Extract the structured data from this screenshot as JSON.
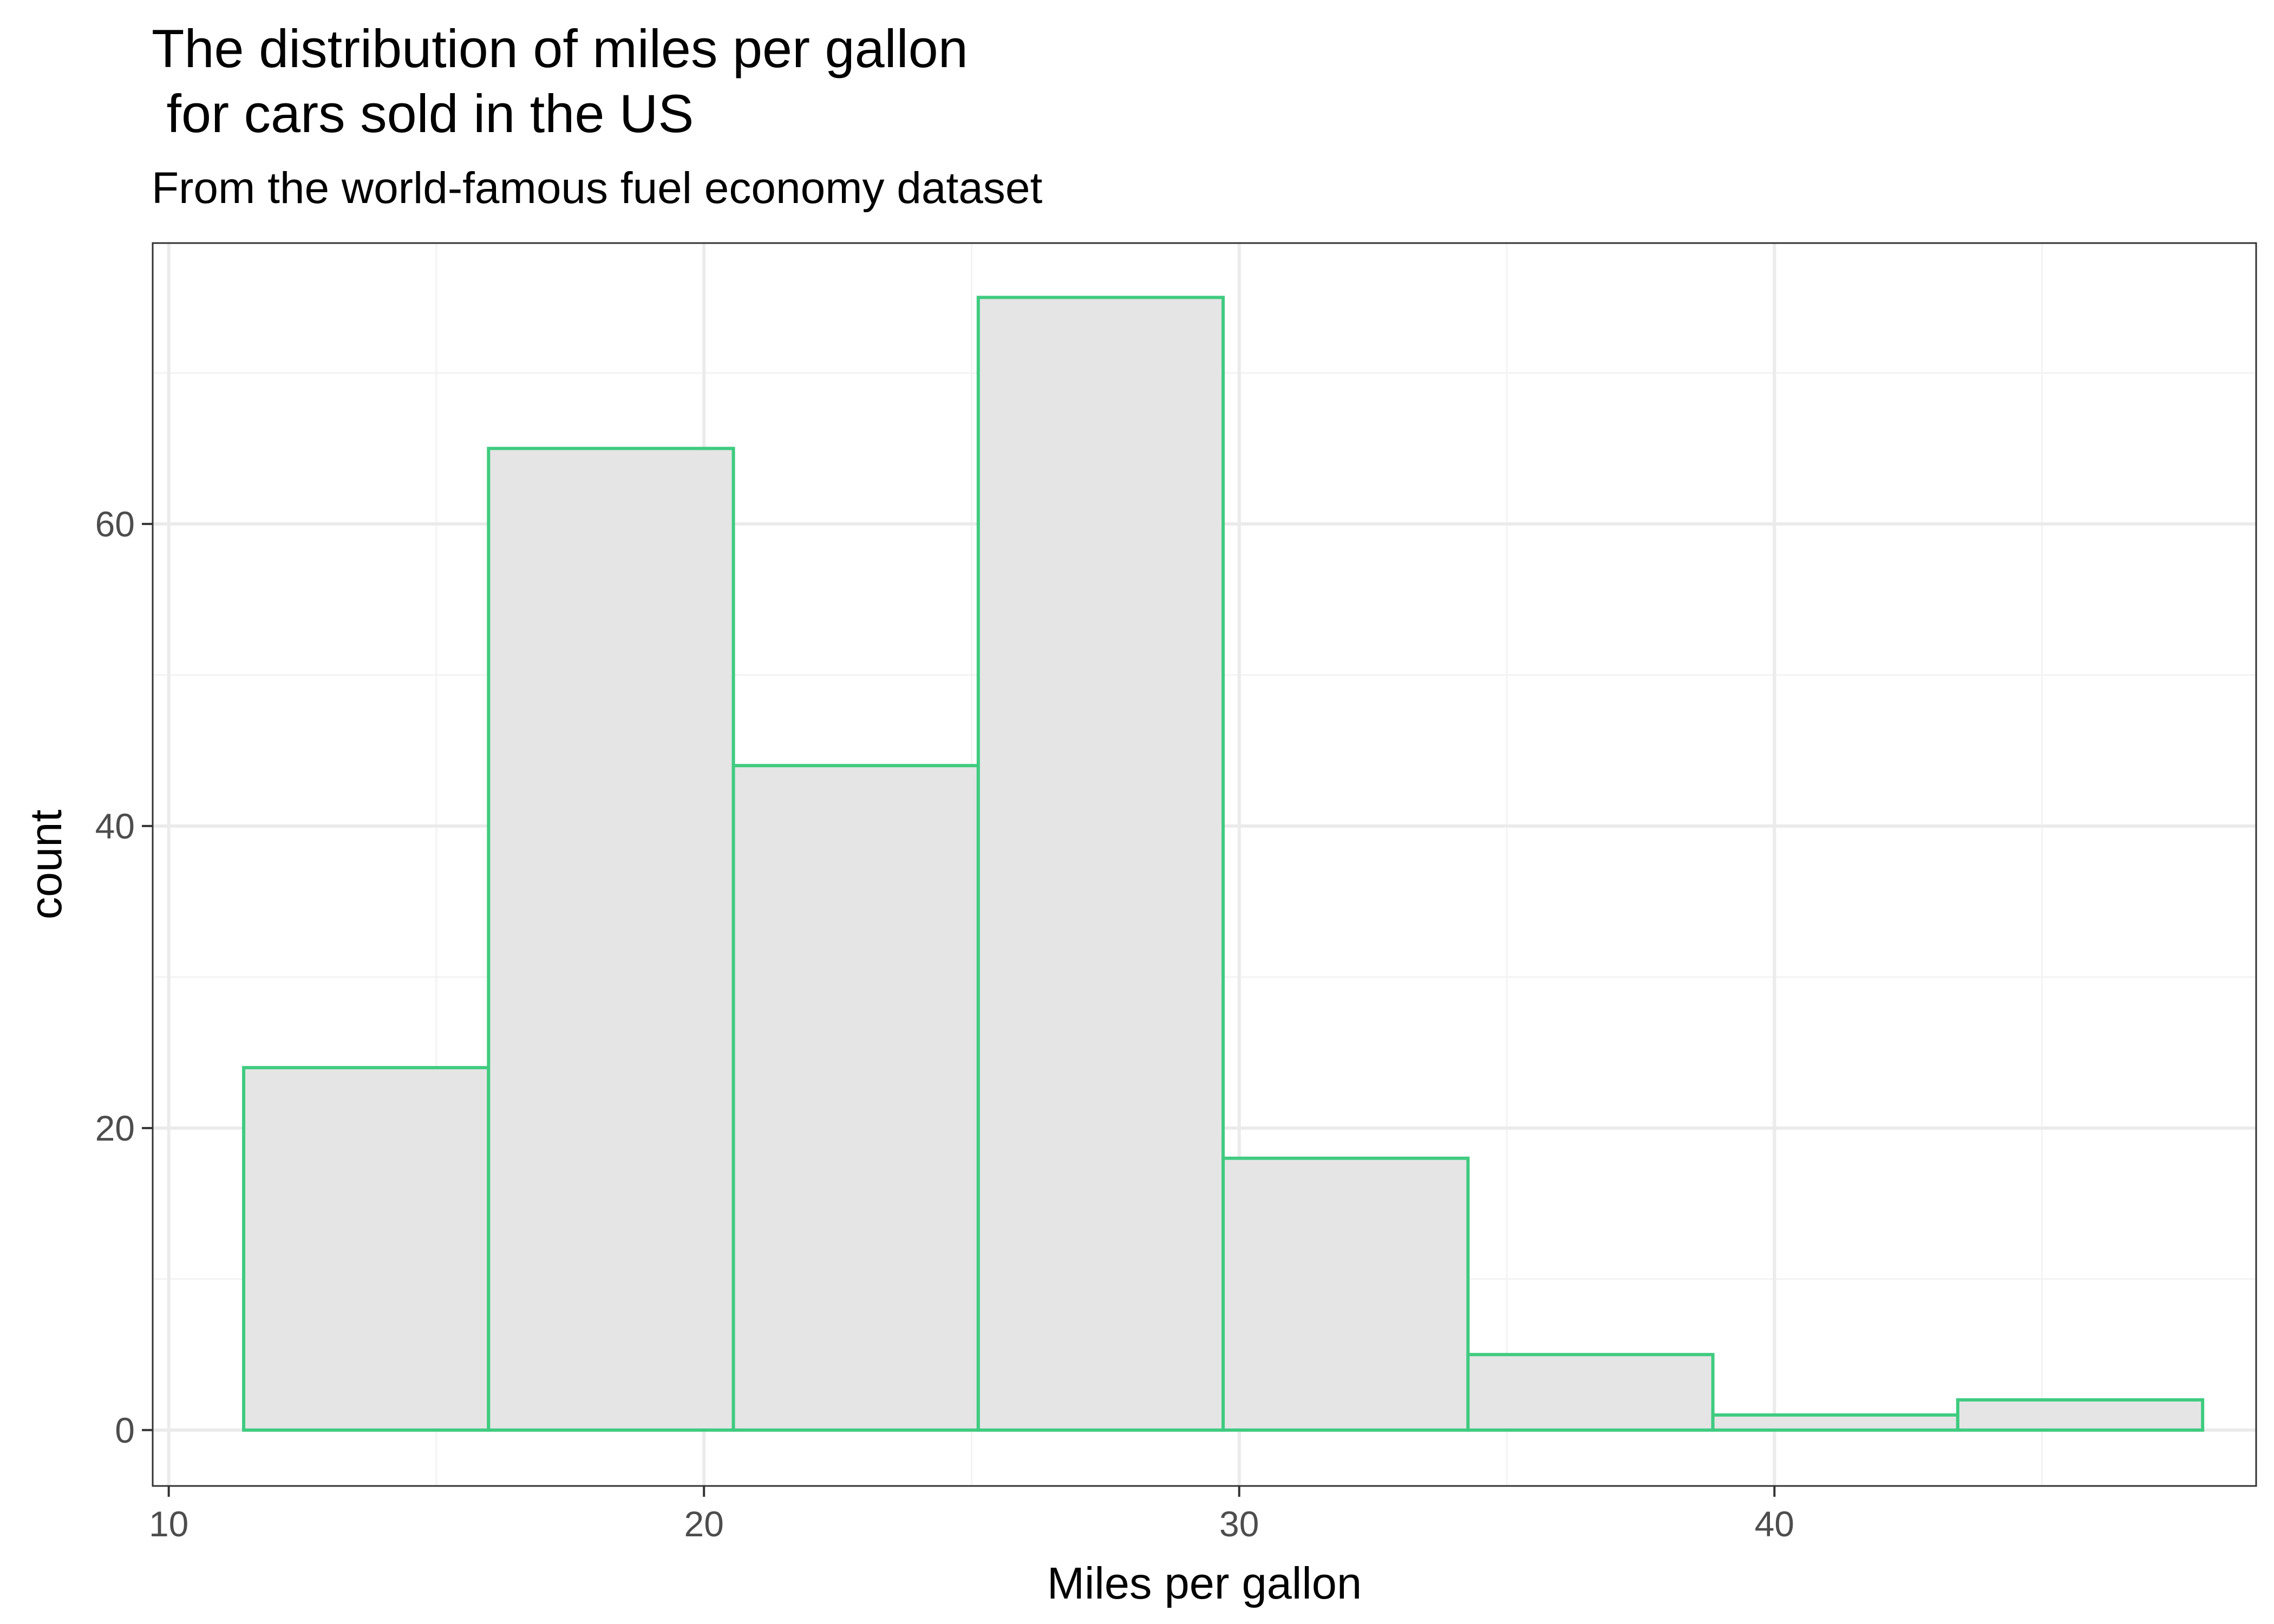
{
  "chart_data": {
    "type": "bar",
    "title": [
      "The distribution of miles per gallon",
      " for cars sold in the US"
    ],
    "subtitle": "From the world-famous fuel economy dataset",
    "xlabel": "Miles per gallon",
    "ylabel": "count",
    "xlim": [
      9.7,
      49.0
    ],
    "ylim": [
      -3.7,
      78.6
    ],
    "x_ticks": [
      10,
      20,
      30,
      40
    ],
    "y_ticks": [
      0,
      20,
      40,
      60
    ],
    "x_minor": [
      15,
      25,
      35,
      45
    ],
    "y_minor": [
      10,
      30,
      50,
      70
    ],
    "grid": true,
    "bins": [
      {
        "x0": 11.4,
        "x1": 15.975,
        "count": 24
      },
      {
        "x0": 15.975,
        "x1": 20.55,
        "count": 65
      },
      {
        "x0": 20.55,
        "x1": 25.125,
        "count": 44
      },
      {
        "x0": 25.125,
        "x1": 29.7,
        "count": 75
      },
      {
        "x0": 29.7,
        "x1": 34.275,
        "count": 18
      },
      {
        "x0": 34.275,
        "x1": 38.85,
        "count": 5
      },
      {
        "x0": 38.85,
        "x1": 43.425,
        "count": 1
      },
      {
        "x0": 43.425,
        "x1": 48.0,
        "count": 2
      }
    ],
    "colors": {
      "bar_fill": "#e5e5e5",
      "bar_outline": "#3fcb80",
      "grid_major": "#ebebeb",
      "grid_minor": "#f3f3f3",
      "panel_border": "#333333",
      "tick_label": "#4d4d4d"
    }
  }
}
